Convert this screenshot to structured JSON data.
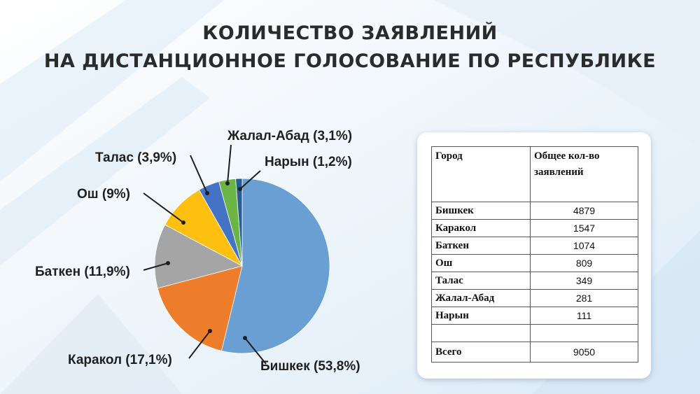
{
  "title": {
    "line1": "КОЛИЧЕСТВО ЗАЯВЛЕНИЙ",
    "line2": "НА ДИСТАНЦИОННОЕ ГОЛОСОВАНИЕ ПО РЕСПУБЛИКЕ"
  },
  "chart_data": {
    "type": "pie",
    "title": "КОЛИЧЕСТВО ЗАЯВЛЕНИЙ НА ДИСТАНЦИОННОЕ ГОЛОСОВАНИЕ ПО РЕСПУБЛИКЕ",
    "categories": [
      "Бишкек",
      "Каракол",
      "Баткен",
      "Ош",
      "Талас",
      "Жалал-Абад",
      "Нарын"
    ],
    "values": [
      53.8,
      17.1,
      11.9,
      9,
      3.9,
      3.1,
      1.2
    ],
    "labels": [
      "Бишкек (53,8%)",
      "Каракол (17,1%)",
      "Баткен  (11,9%)",
      "Ош (9%)",
      "Талас (3,9%)",
      "Жалал-Абад (3,1%)",
      "Нарын (1,2%)"
    ],
    "colors": [
      "#6a9fd4",
      "#ee7d2b",
      "#a5a5a5",
      "#fdc010",
      "#4472c4",
      "#6ab545",
      "#2a5c94"
    ],
    "legend": "none"
  },
  "table": {
    "header_city": "Город",
    "header_total": "Общее кол-во заявлений",
    "rows": [
      {
        "city": "Бишкек",
        "value": "4879"
      },
      {
        "city": "Каракол",
        "value": "1547"
      },
      {
        "city": "Баткен",
        "value": "1074"
      },
      {
        "city": "Ош",
        "value": "809"
      },
      {
        "city": "Талас",
        "value": "349"
      },
      {
        "city": "Жалал-Абад",
        "value": "281"
      },
      {
        "city": "Нарын",
        "value": "111"
      }
    ],
    "total_label": "Всего",
    "total_value": "9050"
  }
}
